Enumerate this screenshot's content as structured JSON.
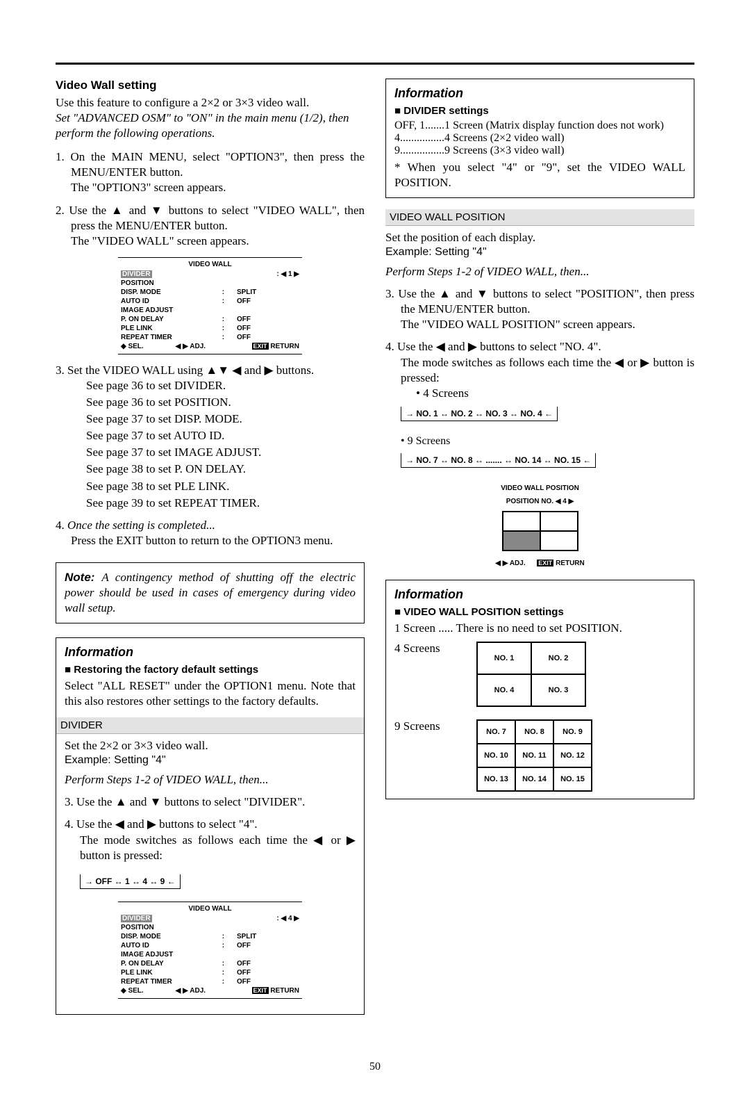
{
  "page_number": "50",
  "left": {
    "title": "Video Wall setting",
    "intro1": "Use this feature to configure a 2×2 or 3×3 video wall.",
    "intro2": "Set \"ADVANCED OSM\" to \"ON\" in the main menu (1/2), then perform the following operations.",
    "step1a": "On the MAIN MENU, select \"OPTION3\", then press the MENU/ENTER button.",
    "step1b": "The \"OPTION3\" screen appears.",
    "step2a": "Use the ▲ and ▼ buttons to select \"VIDEO WALL\", then press the MENU/ENTER button.",
    "step2b": "The \"VIDEO WALL\" screen appears.",
    "step3a": "Set the VIDEO WALL using ▲▼ ◀ and ▶ buttons.",
    "step3_lines": [
      "See page 36 to set DIVIDER.",
      "See page 36 to set POSITION.",
      "See page 37 to set DISP. MODE.",
      "See page 37 to set AUTO ID.",
      "See page 37 to set IMAGE ADJUST.",
      "See page 38 to set P. ON DELAY.",
      "See page 38 to set PLE LINK.",
      "See page 39 to set REPEAT TIMER."
    ],
    "step4a": "Once the setting is completed...",
    "step4b": "Press the EXIT  button to return to the OPTION3 menu.",
    "note": "A contingency method of shutting off the electric power should be used in cases of emergency during video wall setup.",
    "info_restore_title": "Restoring the factory default settings",
    "info_restore_body": "Select \"ALL RESET\" under the OPTION1 menu. Note that this also restores other settings to the factory defaults.",
    "divider_banner": "DIVIDER",
    "divider_l1": "Set the 2×2 or 3×3 video wall.",
    "divider_l2": "Example: Setting \"4\"",
    "divider_l3": "Perform  Steps 1-2 of VIDEO WALL, then...",
    "divider_s3": "Use the ▲ and ▼ buttons to select \"DIVIDER\".",
    "divider_s4a": "Use the ◀ and ▶ buttons to select \"4\".",
    "divider_s4b": "The mode switches as follows each time the ◀ or ▶ button is pressed:",
    "divider_cycle": "→ OFF ↔ 1 ↔ 4 ↔ 9 ←"
  },
  "osd1": {
    "title": "VIDEO WALL",
    "divider_val": "1",
    "rows": [
      [
        "POSITION",
        "",
        ""
      ],
      [
        "DISP. MODE",
        ":",
        "SPLIT"
      ],
      [
        "AUTO ID",
        ":",
        "OFF"
      ],
      [
        "IMAGE ADJUST",
        "",
        ""
      ],
      [
        "P. ON DELAY",
        ":",
        "OFF"
      ],
      [
        "PLE LINK",
        ":",
        "OFF"
      ],
      [
        "REPEAT TIMER",
        ":",
        "OFF"
      ]
    ],
    "foot_sel": "SEL.",
    "foot_adj": "ADJ.",
    "foot_exit": "EXIT",
    "foot_return": "RETURN"
  },
  "osd2": {
    "divider_val": "4"
  },
  "right": {
    "info1_title": "Information",
    "div_settings_title": "DIVIDER settings",
    "div_rows": [
      {
        "k": "OFF, 1",
        "dots": " ....... ",
        "v": "1 Screen (Matrix display function does not work)"
      },
      {
        "k": "4",
        "dots": " ................ ",
        "v": "4 Screens (2×2 video wall)"
      },
      {
        "k": "9",
        "dots": " ................ ",
        "v": "9 Screens (3×3 video wall)"
      }
    ],
    "div_note": "* When you select \"4\" or \"9\", set the VIDEO WALL POSITION.",
    "vwp_banner": "VIDEO WALL POSITION",
    "vwp_l1": "Set the position of each display.",
    "vwp_l2": "Example: Setting \"4\"",
    "vwp_l3": "Perform  Steps 1-2 of VIDEO WALL, then...",
    "vwp_s3a": "Use the ▲ and ▼ buttons to select \"POSITION\", then press the MENU/ENTER button.",
    "vwp_s3b": "The \"VIDEO WALL POSITION\" screen appears.",
    "vwp_s4a": "Use the ◀ and ▶ buttons to select \"NO. 4\".",
    "vwp_s4b": "The mode switches as follows each time the ◀ or ▶ button is pressed:",
    "bullet4": "• 4 Screens",
    "cycle4": "→ NO. 1 ↔ NO. 2  ↔ NO. 3  ↔ NO. 4 ←",
    "bullet9": "• 9 Screens",
    "cycle9": "→ NO. 7 ↔ NO. 8  ↔  .......  ↔ NO. 14  ↔ NO. 15 ←",
    "pos_osd_title": "VIDEO WALL POSITION",
    "pos_osd_row": "POSITION NO.",
    "pos_osd_val": "4",
    "pos_foot_adj": "ADJ.",
    "pos_foot_exit": "EXIT",
    "pos_foot_return": "RETURN",
    "info2_title": "Information",
    "vwps_title": "VIDEO WALL POSITION settings",
    "vwps_1screen": "1 Screen ..... There is no need to set POSITION.",
    "label4": "4 Screens",
    "label9": "9 Screens",
    "grid4": [
      [
        "NO. 1",
        "NO. 2"
      ],
      [
        "NO. 4",
        "NO. 3"
      ]
    ],
    "grid9": [
      [
        "NO. 7",
        "NO. 8",
        "NO. 9"
      ],
      [
        "NO. 10",
        "NO. 11",
        "NO. 12"
      ],
      [
        "NO. 13",
        "NO. 14",
        "NO. 15"
      ]
    ]
  }
}
